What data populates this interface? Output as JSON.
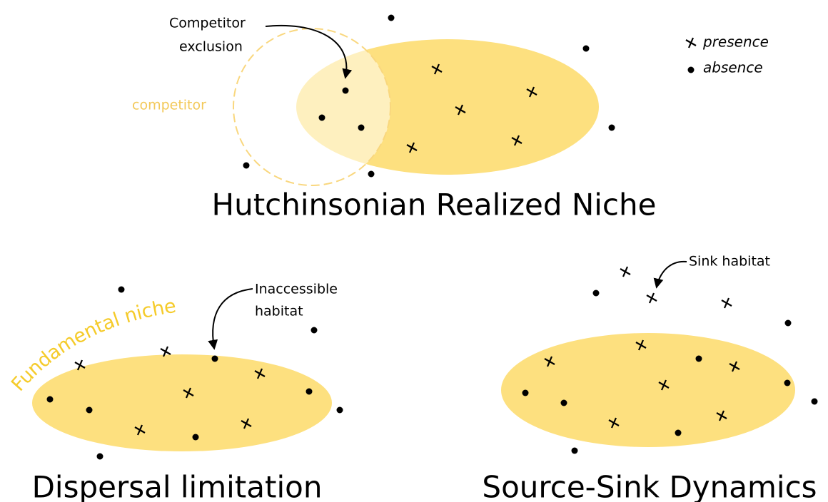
{
  "legend": {
    "presence": "presence",
    "absence": "absence"
  },
  "panels": [
    {
      "title": "Hutchinsonian Realized Niche",
      "annotation": [
        "Competitor",
        "exclusion"
      ],
      "competitor_label": "competitor"
    },
    {
      "title": "Dispersal limitation",
      "niche_label": "Fundamental niche",
      "annotation": [
        "Inaccessible",
        "habitat"
      ]
    },
    {
      "title": "Source-Sink Dynamics",
      "annotation": [
        "Sink habitat"
      ]
    }
  ]
}
